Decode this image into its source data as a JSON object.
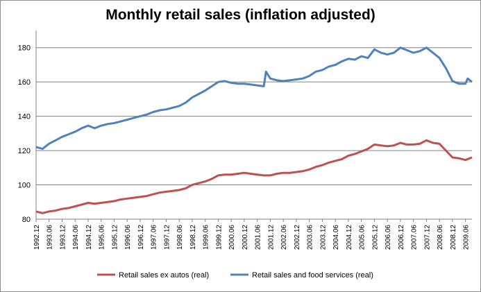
{
  "chart_data": {
    "type": "line",
    "title": "Monthly retail sales (inflation adjusted)",
    "xlabel": "",
    "ylabel": "",
    "ylim": [
      80,
      190
    ],
    "yticks": [
      80,
      100,
      120,
      140,
      160,
      180
    ],
    "grid": "horizontal",
    "legend_position": "bottom",
    "x_ticks": [
      "1992.12",
      "1993.06",
      "1993.12",
      "1994.06",
      "1994.12",
      "1995.06",
      "1995.12",
      "1996.06",
      "1996.12",
      "1997.06",
      "1997.12",
      "1998.06",
      "1998.12",
      "1999.06",
      "1999.12",
      "2000.06",
      "2000.12",
      "2001.06",
      "2001.12",
      "2002.06",
      "2002.12",
      "2003.06",
      "2003.12",
      "2004.06",
      "2004.12",
      "2005.06",
      "2005.12",
      "2006.06",
      "2006.12",
      "2007.06",
      "2007.12",
      "2008.06",
      "2008.12",
      "2009.06"
    ],
    "x_start": "1992.12",
    "x_end": "2009.09",
    "series": [
      {
        "name": "Retail sales ex autos (real)",
        "color": "#C0504D",
        "points": [
          [
            "1992.12",
            84.5
          ],
          [
            "1993.03",
            83.5
          ],
          [
            "1993.06",
            84.5
          ],
          [
            "1993.09",
            85.0
          ],
          [
            "1993.12",
            86.0
          ],
          [
            "1994.03",
            86.5
          ],
          [
            "1994.06",
            87.5
          ],
          [
            "1994.09",
            88.5
          ],
          [
            "1994.12",
            89.5
          ],
          [
            "1995.03",
            89.0
          ],
          [
            "1995.06",
            89.5
          ],
          [
            "1995.09",
            90.0
          ],
          [
            "1995.12",
            90.5
          ],
          [
            "1996.03",
            91.5
          ],
          [
            "1996.06",
            92.0
          ],
          [
            "1996.09",
            92.5
          ],
          [
            "1996.12",
            93.0
          ],
          [
            "1997.03",
            93.5
          ],
          [
            "1997.06",
            94.5
          ],
          [
            "1997.09",
            95.5
          ],
          [
            "1997.12",
            96.0
          ],
          [
            "1998.03",
            96.5
          ],
          [
            "1998.06",
            97.0
          ],
          [
            "1998.09",
            98.0
          ],
          [
            "1998.12",
            100.0
          ],
          [
            "1999.03",
            101.0
          ],
          [
            "1999.06",
            102.0
          ],
          [
            "1999.09",
            103.5
          ],
          [
            "1999.12",
            105.5
          ],
          [
            "2000.03",
            106.0
          ],
          [
            "2000.06",
            106.0
          ],
          [
            "2000.09",
            106.5
          ],
          [
            "2000.12",
            107.0
          ],
          [
            "2001.03",
            106.5
          ],
          [
            "2001.06",
            106.0
          ],
          [
            "2001.09",
            105.5
          ],
          [
            "2001.12",
            105.5
          ],
          [
            "2002.03",
            106.5
          ],
          [
            "2002.06",
            107.0
          ],
          [
            "2002.09",
            107.0
          ],
          [
            "2002.12",
            107.5
          ],
          [
            "2003.03",
            108.0
          ],
          [
            "2003.06",
            109.0
          ],
          [
            "2003.09",
            110.5
          ],
          [
            "2003.12",
            111.5
          ],
          [
            "2004.03",
            113.0
          ],
          [
            "2004.06",
            114.0
          ],
          [
            "2004.09",
            115.0
          ],
          [
            "2004.12",
            117.0
          ],
          [
            "2005.03",
            118.0
          ],
          [
            "2005.06",
            119.5
          ],
          [
            "2005.09",
            121.0
          ],
          [
            "2005.12",
            123.5
          ],
          [
            "2006.03",
            123.0
          ],
          [
            "2006.06",
            122.5
          ],
          [
            "2006.09",
            123.0
          ],
          [
            "2006.12",
            124.5
          ],
          [
            "2007.03",
            123.5
          ],
          [
            "2007.06",
            123.5
          ],
          [
            "2007.09",
            124.0
          ],
          [
            "2007.12",
            126.0
          ],
          [
            "2008.03",
            124.5
          ],
          [
            "2008.06",
            124.0
          ],
          [
            "2008.09",
            120.0
          ],
          [
            "2008.12",
            116.0
          ],
          [
            "2009.03",
            115.5
          ],
          [
            "2009.06",
            114.5
          ],
          [
            "2009.09",
            116.0
          ]
        ]
      },
      {
        "name": "Retail sales and food services (real)",
        "color": "#4F81BD",
        "points": [
          [
            "1992.12",
            122.0
          ],
          [
            "1993.03",
            121.0
          ],
          [
            "1993.06",
            124.0
          ],
          [
            "1993.09",
            126.0
          ],
          [
            "1993.12",
            128.0
          ],
          [
            "1994.03",
            129.5
          ],
          [
            "1994.06",
            131.0
          ],
          [
            "1994.09",
            133.0
          ],
          [
            "1994.12",
            134.5
          ],
          [
            "1995.03",
            133.0
          ],
          [
            "1995.06",
            134.5
          ],
          [
            "1995.09",
            135.5
          ],
          [
            "1995.12",
            136.0
          ],
          [
            "1996.03",
            137.0
          ],
          [
            "1996.06",
            138.0
          ],
          [
            "1996.09",
            139.0
          ],
          [
            "1996.12",
            140.0
          ],
          [
            "1997.03",
            141.0
          ],
          [
            "1997.06",
            142.5
          ],
          [
            "1997.09",
            143.5
          ],
          [
            "1997.12",
            144.0
          ],
          [
            "1998.03",
            145.0
          ],
          [
            "1998.06",
            146.0
          ],
          [
            "1998.09",
            148.0
          ],
          [
            "1998.12",
            151.0
          ],
          [
            "1999.03",
            153.0
          ],
          [
            "1999.06",
            155.0
          ],
          [
            "1999.09",
            157.5
          ],
          [
            "1999.12",
            160.0
          ],
          [
            "2000.03",
            160.5
          ],
          [
            "2000.06",
            159.5
          ],
          [
            "2000.09",
            159.0
          ],
          [
            "2000.12",
            159.0
          ],
          [
            "2001.03",
            158.5
          ],
          [
            "2001.06",
            158.0
          ],
          [
            "2001.09",
            157.5
          ],
          [
            "2001.10",
            166.0
          ],
          [
            "2001.12",
            162.0
          ],
          [
            "2002.03",
            161.0
          ],
          [
            "2002.06",
            160.5
          ],
          [
            "2002.09",
            161.0
          ],
          [
            "2002.12",
            161.5
          ],
          [
            "2003.03",
            162.0
          ],
          [
            "2003.06",
            163.5
          ],
          [
            "2003.09",
            166.0
          ],
          [
            "2003.12",
            167.0
          ],
          [
            "2004.03",
            169.0
          ],
          [
            "2004.06",
            170.0
          ],
          [
            "2004.09",
            172.0
          ],
          [
            "2004.12",
            173.5
          ],
          [
            "2005.03",
            173.0
          ],
          [
            "2005.06",
            175.0
          ],
          [
            "2005.09",
            174.0
          ],
          [
            "2005.12",
            179.0
          ],
          [
            "2006.03",
            177.0
          ],
          [
            "2006.06",
            176.0
          ],
          [
            "2006.09",
            177.0
          ],
          [
            "2006.12",
            180.0
          ],
          [
            "2007.03",
            178.5
          ],
          [
            "2007.06",
            177.0
          ],
          [
            "2007.09",
            178.0
          ],
          [
            "2007.12",
            180.0
          ],
          [
            "2008.03",
            177.0
          ],
          [
            "2008.06",
            174.0
          ],
          [
            "2008.09",
            168.0
          ],
          [
            "2008.12",
            160.5
          ],
          [
            "2009.03",
            159.0
          ],
          [
            "2009.06",
            159.0
          ],
          [
            "2009.07",
            162.0
          ],
          [
            "2009.09",
            160.0
          ]
        ]
      }
    ]
  }
}
